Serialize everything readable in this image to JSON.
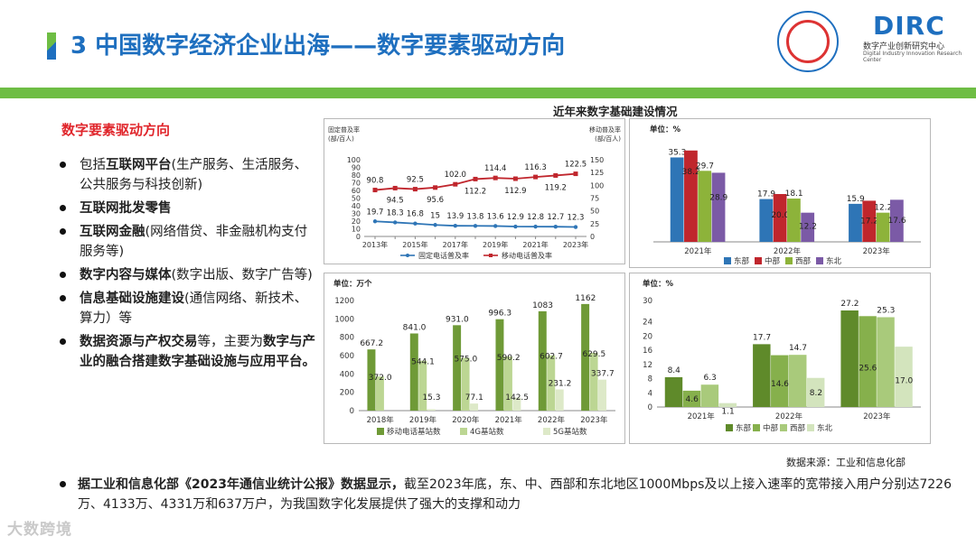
{
  "header": {
    "title": "3 中国数字经济企业出海——数字要素驱动方向",
    "logo_text": "DIRC",
    "logo_sub_cn": "数字产业创新研究中心",
    "logo_sub_en": "Digital Industry Innovation Research Center"
  },
  "left": {
    "heading": "数字要素驱动方向",
    "bullets": [
      {
        "bold": "",
        "pre": "包括",
        "bold2": "互联网平台",
        "rest": "(生产服务、生活服务、公共服务与科技创新)"
      },
      {
        "bold": "互联网批发零售",
        "rest": ""
      },
      {
        "bold": "互联网金融",
        "rest": "(网络借贷、非金融机构支付服务等)"
      },
      {
        "bold": "数字内容与媒体",
        "rest": "(数字出版、数字广告等)"
      },
      {
        "bold": "信息基础设施建设",
        "rest": "(通信网络、新技术、算力）等"
      },
      {
        "bold": "数据资源与产权交易",
        "rest": "等，主要为",
        "bold3": "数字与产业的融合搭建数字基础设施与应用平台。"
      }
    ]
  },
  "charts_title": "近年来数字基础建设情况",
  "chart_data": [
    {
      "type": "line",
      "left_axis_label": "固定普及率\n(部/百人)",
      "right_axis_label": "移动普及率\n(部/百人)",
      "x": [
        "2013年",
        "2014年",
        "2015年",
        "2016年",
        "2017年",
        "2018年",
        "2019年",
        "2020年",
        "2021年",
        "2022年",
        "2023年"
      ],
      "x_tick_labels": [
        "2013年",
        "2015年",
        "2017年",
        "2019年",
        "2021年",
        "2023年"
      ],
      "ylim_left": [
        0,
        100
      ],
      "yticks_left": [
        "0",
        "10",
        "20",
        "30",
        "40",
        "50",
        "60",
        "70",
        "80",
        "90",
        "100"
      ],
      "ylim_right": [
        0,
        150
      ],
      "yticks_right": [
        "0",
        "25",
        "50",
        "75",
        "100",
        "125",
        "150"
      ],
      "series": [
        {
          "name": "固定电话普及率",
          "axis": "left",
          "color": "#2e75b6",
          "values": [
            19.7,
            18.3,
            16.8,
            15,
            13.9,
            13.8,
            13.6,
            12.9,
            12.8,
            12.7,
            12.3
          ],
          "labels": [
            "19.7",
            "18.3",
            "16.8",
            "15",
            "13.9",
            "13.8",
            "13.6",
            "12.9",
            "12.8",
            "12.7",
            "12.3"
          ]
        },
        {
          "name": "移动电话普及率",
          "axis": "right",
          "color": "#c0262d",
          "values": [
            90.8,
            94.5,
            92.5,
            95.6,
            102.0,
            112.2,
            114.4,
            112.9,
            116.3,
            119.2,
            122.5
          ],
          "labels": [
            "90.8",
            "94.5",
            "92.5",
            "95.6",
            "102.0",
            "112.2",
            "114.4",
            "112.9",
            "116.3",
            "119.2",
            "122.5"
          ]
        }
      ]
    },
    {
      "type": "bar",
      "unit": "单位：%",
      "categories": [
        "2021年",
        "2022年",
        "2023年"
      ],
      "ylim": [
        0,
        40
      ],
      "series": [
        {
          "name": "东部",
          "color": "#2e75b6",
          "values": [
            35.3,
            17.9,
            15.9
          ],
          "labels": [
            "35.3",
            "17.9",
            "15.9"
          ]
        },
        {
          "name": "中部",
          "color": "#c0262d",
          "values": [
            38.2,
            20.0,
            17.2
          ],
          "labels": [
            "38.2",
            "20.0",
            "17.2"
          ]
        },
        {
          "name": "西部",
          "color": "#8db33a",
          "values": [
            29.7,
            18.1,
            12.2
          ],
          "labels": [
            "29.7",
            "18.1",
            "12.2"
          ]
        },
        {
          "name": "东北",
          "color": "#7b5aa6",
          "values": [
            28.9,
            12.2,
            17.6
          ],
          "labels": [
            "28.9",
            "12.2",
            "17.6"
          ]
        }
      ]
    },
    {
      "type": "bar",
      "unit": "单位：万个",
      "categories": [
        "2018年",
        "2019年",
        "2020年",
        "2021年",
        "2022年",
        "2023年"
      ],
      "ylim": [
        0,
        1200
      ],
      "yticks": [
        "0",
        "200",
        "400",
        "600",
        "800",
        "1000",
        "1200"
      ],
      "series": [
        {
          "name": "移动电话基站数",
          "color": "#6f9a37",
          "values": [
            667.2,
            841.0,
            931.0,
            996.3,
            1083,
            1162
          ],
          "labels": [
            "667.2",
            "841.0",
            "931.0",
            "996.3",
            "1083",
            "1162"
          ]
        },
        {
          "name": "4G基站数",
          "color": "#bcd693",
          "values": [
            372.0,
            544.1,
            575.0,
            590.2,
            602.7,
            629.5
          ],
          "labels": [
            "372.0",
            "544.1",
            "575.0",
            "590.2",
            "602.7",
            "629.5"
          ]
        },
        {
          "name": "5G基站数",
          "color": "#dde9c8",
          "values": [
            0,
            15.3,
            77.1,
            142.5,
            231.2,
            337.7
          ],
          "labels": [
            "",
            "15.3",
            "77.1",
            "142.5",
            "231.2",
            "337.7"
          ]
        }
      ]
    },
    {
      "type": "bar",
      "unit": "单位：%",
      "categories": [
        "2021年",
        "2022年",
        "2023年"
      ],
      "ylim": [
        0,
        30
      ],
      "yticks": [
        "0",
        "4",
        "8",
        "12",
        "16",
        "20",
        "24",
        "30"
      ],
      "ytick_values": [
        0,
        4,
        8,
        12,
        16,
        20,
        24,
        30
      ],
      "series": [
        {
          "name": "东部",
          "color": "#5f8a2a",
          "values": [
            8.4,
            17.7,
            27.2
          ],
          "labels": [
            "8.4",
            "17.7",
            "27.2"
          ]
        },
        {
          "name": "中部",
          "color": "#86b04c",
          "values": [
            4.6,
            14.6,
            25.6
          ],
          "labels": [
            "4.6",
            "14.6",
            "25.6"
          ]
        },
        {
          "name": "西部",
          "color": "#a9ca7b",
          "values": [
            6.3,
            14.7,
            25.3
          ],
          "labels": [
            "6.3",
            "14.7",
            "25.3"
          ]
        },
        {
          "name": "东北",
          "color": "#d3e4bd",
          "values": [
            1.1,
            8.2,
            17.0
          ],
          "labels": [
            "1.1",
            "8.2",
            "17.0"
          ]
        }
      ]
    }
  ],
  "source": "数据来源：工业和信息化部",
  "footer": {
    "bold": "据工业和信息化部《2023年通信业统计公报》数据显示，",
    "rest": "截至2023年底，东、中、西部和东北地区1000Mbps及以上接入速率的宽带接入用户分别达7226万、4133万、4331万和637万户，为我国数字化发展提供了强大的支撑和动力"
  },
  "watermark": "大数跨境",
  "colors": {
    "brand_blue": "#1e6fbf",
    "brand_green": "#6ebd44",
    "accent_red": "#e0252b"
  }
}
